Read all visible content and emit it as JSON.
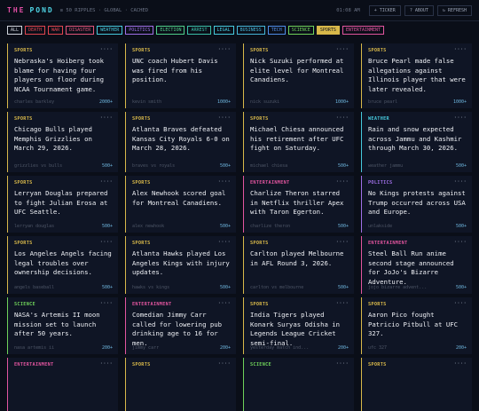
{
  "header": {
    "title": [
      "THE",
      "POND"
    ],
    "meta": "≡ 50 RIPPLES · GLOBAL · CACHED",
    "time": "01:08 AM",
    "buttons": [
      "+ TICKER",
      "? ABOUT",
      "↻ REFRESH"
    ]
  },
  "filters": [
    "ALL",
    "DEATH",
    "WAR",
    "DISASTER",
    "WEATHER",
    "POLITICS",
    "ELECTION",
    "ARREST",
    "LEGAL",
    "BUSINESS",
    "TECH",
    "SCIENCE",
    "SPORTS",
    "ENTERTAINMENT"
  ],
  "cards": [
    {
      "category": "SPORTS",
      "headline": "Nebraska's Hoiberg took blame for having four players on floor during NCAA Tournament game.",
      "source": "charles barkley",
      "count": "2000+"
    },
    {
      "category": "SPORTS",
      "headline": "UNC coach Hubert Davis was fired from his position.",
      "source": "kevin smith",
      "count": "1000+"
    },
    {
      "category": "SPORTS",
      "headline": "Nick Suzuki performed at elite level for Montreal Canadiens.",
      "source": "nick suzuki",
      "count": "1000+"
    },
    {
      "category": "SPORTS",
      "headline": "Bruce Pearl made false allegations against Illinois player that were later revealed.",
      "source": "bruce pearl",
      "count": "1000+"
    },
    {
      "category": "SPORTS",
      "headline": "Chicago Bulls played Memphis Grizzlies on March 29, 2026.",
      "source": "grizzlies vs bulls",
      "count": "500+"
    },
    {
      "category": "SPORTS",
      "headline": "Atlanta Braves defeated Kansas City Royals 6-0 on March 28, 2026.",
      "source": "braves vs royals",
      "count": "500+"
    },
    {
      "category": "SPORTS",
      "headline": "Michael Chiesa announced his retirement after UFC fight on Saturday.",
      "source": "michael chiesa",
      "count": "500+"
    },
    {
      "category": "WEATHER",
      "headline": "Rain and snow expected across Jammu and Kashmir through March 30, 2026.",
      "source": "weather jammu",
      "count": "500+"
    },
    {
      "category": "SPORTS",
      "headline": "Lerryan Douglas prepared to fight Julian Erosa at UFC Seattle.",
      "source": "lerryan douglas",
      "count": "500+"
    },
    {
      "category": "SPORTS",
      "headline": "Alex Newhook scored goal for Montreal Canadiens.",
      "source": "alex newhook",
      "count": "500+"
    },
    {
      "category": "ENTERTAINMENT",
      "headline": "Charlize Theron starred in Netflix thriller Apex with Taron Egerton.",
      "source": "charlize theron",
      "count": "500+"
    },
    {
      "category": "POLITICS",
      "headline": "No Kings protests against Trump occurred across USA and Europe.",
      "source": "unlakside",
      "count": "500+"
    },
    {
      "category": "SPORTS",
      "headline": "Los Angeles Angels facing legal troubles over ownership decisions.",
      "source": "angels baseball",
      "count": "500+"
    },
    {
      "category": "SPORTS",
      "headline": "Atlanta Hawks played Los Angeles Kings with injury updates.",
      "source": "hawks vs kings",
      "count": "500+"
    },
    {
      "category": "SPORTS",
      "headline": "Carlton played Melbourne in AFL Round 3, 2026.",
      "source": "carlton vs melbourne",
      "count": "500+"
    },
    {
      "category": "ENTERTAINMENT",
      "headline": "Steel Ball Run anime second stage announced for JoJo's Bizarre Adventure.",
      "source": "jojo bizarre advent...",
      "count": "500+"
    },
    {
      "category": "SCIENCE",
      "headline": "NASA's Artemis II moon mission set to launch after 50 years.",
      "source": "nasa artemis ii",
      "count": "200+"
    },
    {
      "category": "ENTERTAINMENT",
      "headline": "Comedian Jimmy Carr called for lowering pub drinking age to 16 for men.",
      "source": "jimmy carr",
      "count": "200+"
    },
    {
      "category": "SPORTS",
      "headline": "India Tigers played Konark Suryas Odisha in Legends League Cricket semi-final.",
      "source": "yesterday match ind...",
      "count": "200+"
    },
    {
      "category": "SPORTS",
      "headline": "Aaron Pico fought Patricio Pitbull at UFC 327.",
      "source": "ufc 327",
      "count": "200+"
    },
    {
      "category": "ENTERTAINMENT"
    },
    {
      "category": "SPORTS"
    },
    {
      "category": "SCIENCE"
    },
    {
      "category": "SPORTS"
    }
  ]
}
